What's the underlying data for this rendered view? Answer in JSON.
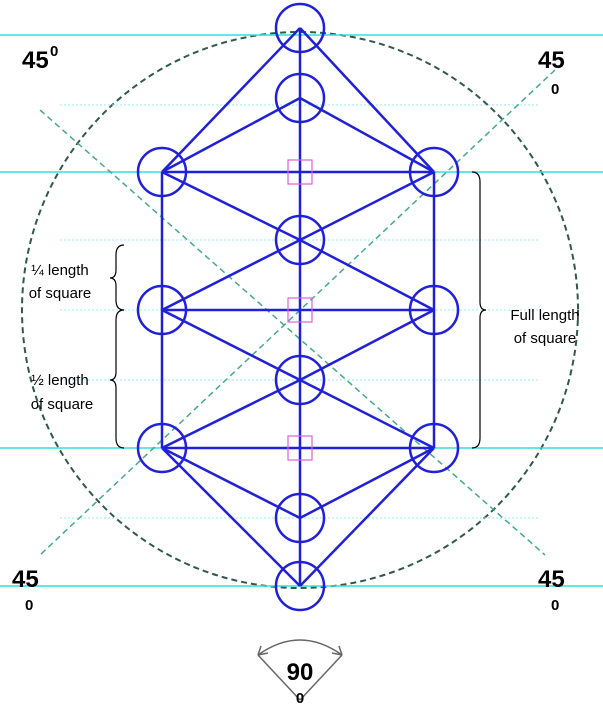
{
  "angle_labels": [
    {
      "number": "45",
      "exponent": "0"
    },
    {
      "number": "45",
      "exponent": "0"
    },
    {
      "number": "45",
      "exponent": "0"
    },
    {
      "number": "45",
      "exponent": "0"
    }
  ],
  "annotations": [
    {
      "lines": [
        "¼ length",
        "of square"
      ]
    },
    {
      "lines": [
        "½ length",
        "of square"
      ]
    },
    {
      "lines": [
        "Full length",
        "of square"
      ]
    }
  ],
  "bottom_angle": {
    "number": "90",
    "exponent": "0"
  }
}
